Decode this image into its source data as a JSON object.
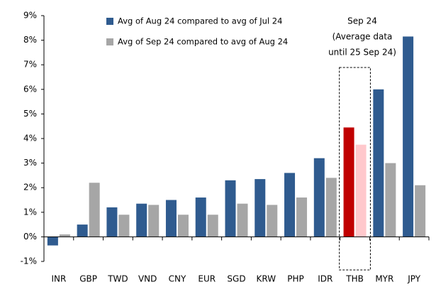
{
  "chart_data": {
    "type": "bar",
    "categories": [
      "INR",
      "GBP",
      "TWD",
      "VND",
      "CNY",
      "EUR",
      "SGD",
      "KRW",
      "PHP",
      "IDR",
      "THB",
      "MYR",
      "JPY"
    ],
    "series": [
      {
        "name": "Avg of Aug 24 compared to avg of Jul 24",
        "color": "#2f5b8f",
        "highlight_color": "#c00000",
        "values": [
          -0.35,
          0.5,
          1.2,
          1.35,
          1.5,
          1.6,
          2.3,
          2.35,
          2.6,
          3.2,
          4.45,
          6.0,
          8.15
        ]
      },
      {
        "name": "Avg of Sep 24 compared to avg of Aug 24",
        "color": "#a6a6a6",
        "highlight_color": "#ffc8cc",
        "values": [
          0.1,
          2.2,
          0.9,
          1.3,
          0.9,
          0.9,
          1.35,
          1.3,
          1.6,
          2.4,
          3.75,
          3.0,
          2.1
        ]
      }
    ],
    "highlight": "THB",
    "annotation": [
      "Sep 24",
      "(Average data",
      "until 25 Sep 24)"
    ],
    "ylim": [
      -1,
      9
    ],
    "yticks": [
      {
        "value": -1,
        "label": "-1%"
      },
      {
        "value": 0,
        "label": "0%"
      },
      {
        "value": 1,
        "label": "1%"
      },
      {
        "value": 2,
        "label": "2%"
      },
      {
        "value": 3,
        "label": "3%"
      },
      {
        "value": 4,
        "label": "4%"
      },
      {
        "value": 5,
        "label": "5%"
      },
      {
        "value": 6,
        "label": "6%"
      },
      {
        "value": 7,
        "label": "7%"
      },
      {
        "value": 8,
        "label": "8%"
      },
      {
        "value": 9,
        "label": "9%"
      }
    ],
    "grid": false
  }
}
